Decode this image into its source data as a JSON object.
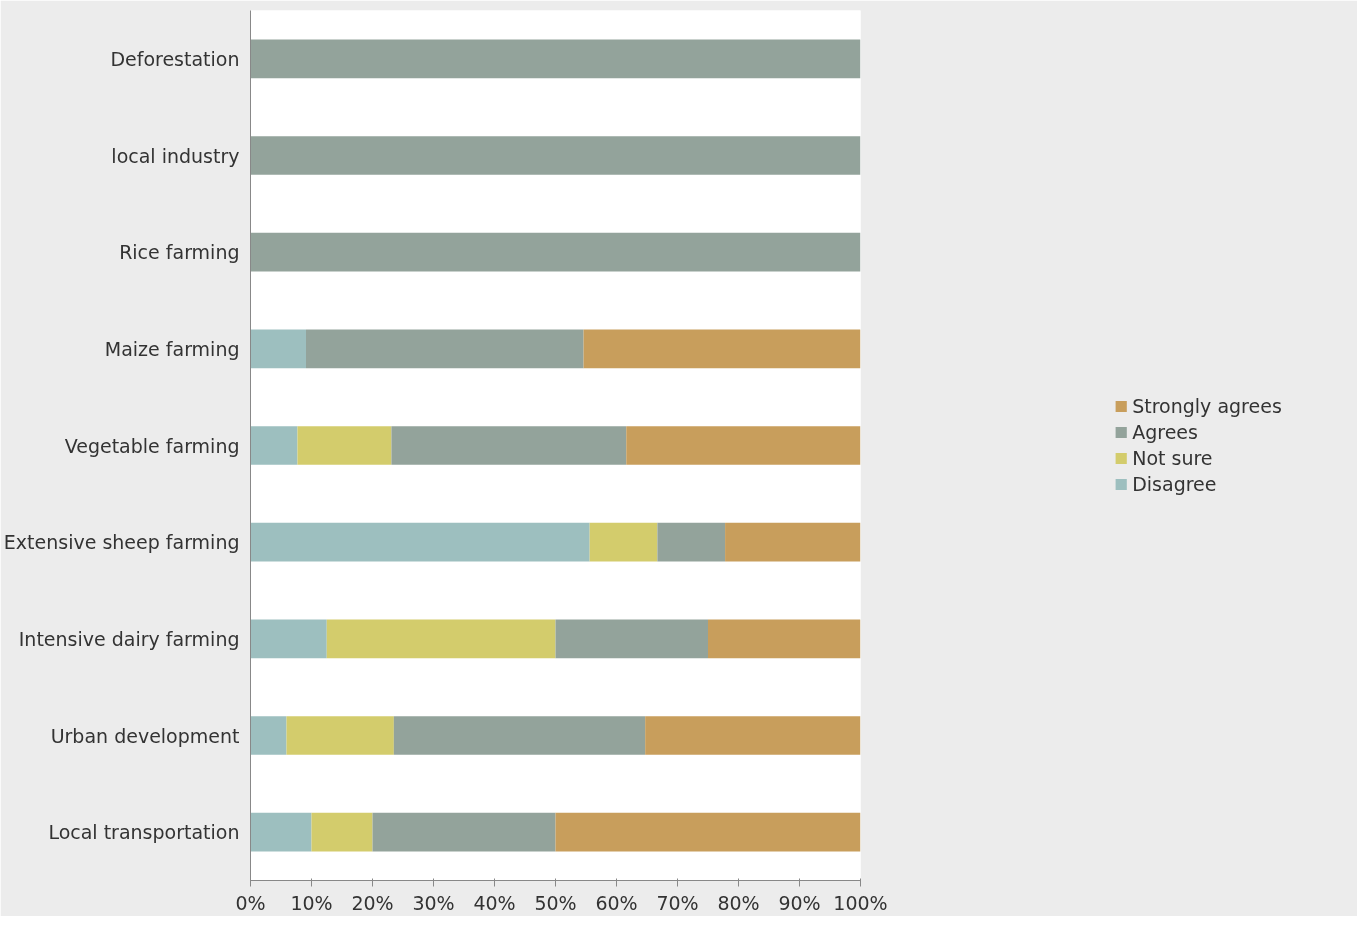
{
  "chart_data": {
    "type": "bar",
    "orientation": "horizontal",
    "stacked": true,
    "categories": [
      "Deforestation",
      "local industry",
      "Rice farming",
      "Maize farming",
      "Vegetable farming",
      "Extensive sheep farming",
      "Intensive dairy farming",
      "Urban development",
      "Local transportation"
    ],
    "series": [
      {
        "name": "Disagree",
        "color": "#9dbfbf",
        "values": [
          0,
          0,
          0,
          9.1,
          7.7,
          55.6,
          12.5,
          5.9,
          10
        ]
      },
      {
        "name": "Not sure",
        "color": "#d3cc6c",
        "values": [
          0,
          0,
          0,
          0,
          15.4,
          11.1,
          37.5,
          17.6,
          10
        ]
      },
      {
        "name": "Agrees",
        "color": "#93a39b",
        "values": [
          100,
          100,
          100,
          45.5,
          38.5,
          11.1,
          25,
          41.2,
          30
        ]
      },
      {
        "name": "Strongly agrees",
        "color": "#c89e5c",
        "values": [
          0,
          0,
          0,
          45.4,
          38.4,
          22.2,
          25,
          35.3,
          50
        ]
      }
    ],
    "xlim": [
      0,
      100
    ],
    "xticks": [
      {
        "value": 0,
        "label": "0%"
      },
      {
        "value": 10,
        "label": "10%"
      },
      {
        "value": 20,
        "label": "20%"
      },
      {
        "value": 30,
        "label": "30%"
      },
      {
        "value": 40,
        "label": "40%"
      },
      {
        "value": 50,
        "label": "50%"
      },
      {
        "value": 60,
        "label": "60%"
      },
      {
        "value": 70,
        "label": "70%"
      },
      {
        "value": 80,
        "label": "80%"
      },
      {
        "value": 90,
        "label": "90%"
      },
      {
        "value": 100,
        "label": "100%"
      }
    ],
    "grid": false,
    "legend": "right"
  }
}
